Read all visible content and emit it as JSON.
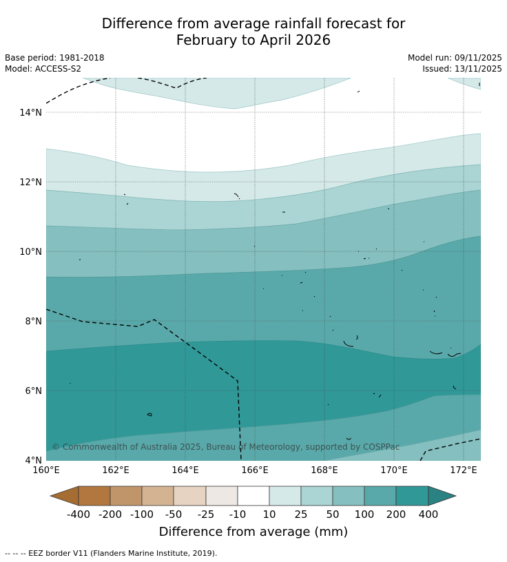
{
  "header": {
    "title_line1": "Difference from average rainfall forecast for",
    "title_line2": "February to April 2026",
    "base_period": "Base period: 1981-2018",
    "model": "Model: ACCESS-S2",
    "model_run": "Model run: 09/11/2025",
    "issued": "Issued: 13/11/2025"
  },
  "map": {
    "lat_labels": [
      "14°N",
      "12°N",
      "10°N",
      "8°N",
      "6°N",
      "4°N"
    ],
    "lon_labels": [
      "160°E",
      "162°E",
      "164°E",
      "166°E",
      "168°E",
      "170°E",
      "172°E"
    ],
    "lat_range": [
      4,
      15
    ],
    "lon_range": [
      160,
      172.5
    ],
    "copyright": "© Commonwealth of Australia 2025, Bureau of Meteorology, supported by COSPPac"
  },
  "legend": {
    "title": "Difference from average (mm)",
    "labels": [
      "-400",
      "-200",
      "-100",
      "-50",
      "-25",
      "-10",
      "10",
      "25",
      "50",
      "100",
      "200",
      "400"
    ],
    "colors": [
      "#a66d32",
      "#b1773f",
      "#c0956a",
      "#d4b393",
      "#e7d3c1",
      "#ede8e4",
      "#ffffff",
      "#d5e9e8",
      "#abd4d4",
      "#85bfbf",
      "#5aa9aa",
      "#319898",
      "#2b8282"
    ]
  },
  "footnote": "--  --  -- EEZ border V11 (Flanders Marine Institute, 2019)."
}
